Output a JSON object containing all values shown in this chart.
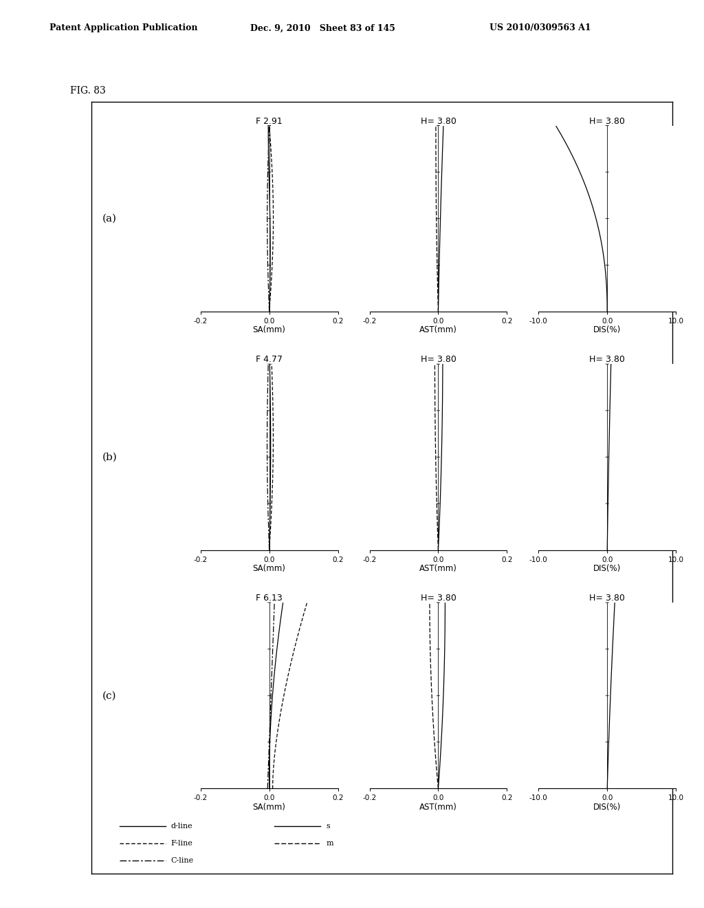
{
  "header_left": "Patent Application Publication",
  "header_mid": "Dec. 9, 2010   Sheet 83 of 145",
  "header_right": "US 2010/0309563 A1",
  "fig_label": "FIG. 83",
  "rows": [
    {
      "label": "(a)",
      "sa_title": "F 2.91",
      "ast_title": "H= 3.80",
      "dis_title": "H= 3.80"
    },
    {
      "label": "(b)",
      "sa_title": "F 4.77",
      "ast_title": "H= 3.80",
      "dis_title": "H= 3.80"
    },
    {
      "label": "(c)",
      "sa_title": "F 6.13",
      "ast_title": "H= 3.80",
      "dis_title": "H= 3.80"
    }
  ],
  "sa_xlim": [
    -0.2,
    0.2
  ],
  "ast_xlim": [
    -0.2,
    0.2
  ],
  "dis_xlim": [
    -10.0,
    10.0
  ],
  "ylim": [
    0.0,
    1.0
  ],
  "sa_xticks": [
    -0.2,
    0.0,
    0.2
  ],
  "ast_xticks": [
    -0.2,
    0.0,
    0.2
  ],
  "dis_xticks": [
    -10.0,
    0.0,
    10.0
  ],
  "sa_xtick_labels": [
    "-0.2",
    "0.0",
    "0.2"
  ],
  "ast_xtick_labels": [
    "-0.2",
    "0.0",
    "0.2"
  ],
  "dis_xtick_labels": [
    "-10.0",
    "0.0",
    "10.0"
  ],
  "background_color": "#ffffff"
}
